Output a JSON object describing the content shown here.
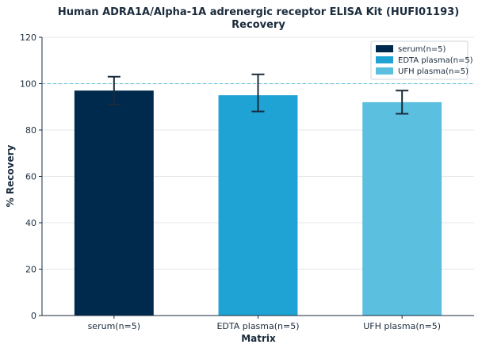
{
  "chart_data": {
    "type": "bar",
    "title": "Human ADRA1A/Alpha-1A adrenergic receptor ELISA Kit (HUFI01193)",
    "subtitle": "Recovery",
    "xlabel": "Matrix",
    "ylabel": "% Recovery",
    "categories": [
      "serum(n=5)",
      "EDTA plasma(n=5)",
      "UFH plasma(n=5)"
    ],
    "values": [
      97,
      95,
      92
    ],
    "error_low": [
      91,
      88,
      87
    ],
    "error_high": [
      103,
      104,
      97
    ],
    "colors": [
      "#002a4d",
      "#1fa3d4",
      "#5bbfe0"
    ],
    "ylim": [
      0,
      120
    ],
    "yticks": [
      0,
      20,
      40,
      60,
      80,
      100,
      120
    ],
    "reference_line": 100,
    "reference_color": "#6cc3dd",
    "grid": true,
    "legend": {
      "position": "top-right",
      "entries": [
        "serum(n=5)",
        "EDTA plasma(n=5)",
        "UFH plasma(n=5)"
      ]
    }
  }
}
